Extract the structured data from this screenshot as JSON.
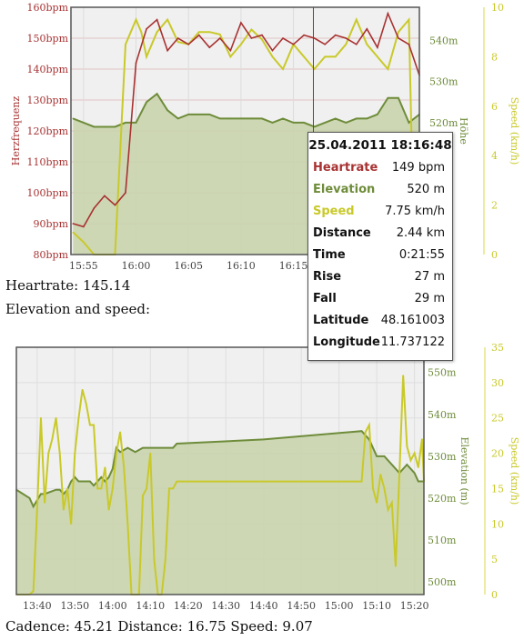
{
  "chart_top": {
    "type": "line",
    "yaxis_left": {
      "label": "Herzfrequenz",
      "unit": "bpm",
      "min": 80,
      "max": 160,
      "ticks": [
        80,
        90,
        100,
        110,
        120,
        130,
        140,
        150,
        160
      ],
      "color": "#a83232"
    },
    "yaxis_elev": {
      "label": "Höhe",
      "unit": "m",
      "min": 488,
      "max": 548,
      "ticks": [
        520,
        530,
        540
      ],
      "color": "#6e8c3a"
    },
    "yaxis_speed": {
      "label": "Speed (km/h)",
      "min": 0,
      "max": 10,
      "ticks": [
        0,
        2,
        4,
        6,
        8,
        10
      ],
      "color": "#c9c92a"
    },
    "xaxis": {
      "ticks": [
        "15:55",
        "16:00",
        "16:05",
        "16:10",
        "16:15"
      ],
      "tick_values": [
        0,
        5,
        10,
        15,
        20
      ],
      "min": -1.2,
      "max": 32
    },
    "cursor_x": 21.9,
    "series": [
      {
        "name": "Heartrate",
        "color": "#a83232",
        "x": [
          -1,
          0,
          1,
          2,
          3,
          4,
          5,
          6,
          7,
          8,
          9,
          10,
          11,
          12,
          13,
          14,
          15,
          16,
          17,
          18,
          19,
          20,
          21,
          22,
          23,
          24,
          25,
          26,
          27,
          28,
          29,
          30,
          31,
          32
        ],
        "values": [
          90,
          89,
          95,
          99,
          96,
          100,
          142,
          153,
          156,
          146,
          150,
          148,
          151,
          147,
          150,
          146,
          155,
          150,
          151,
          146,
          150,
          148,
          151,
          150,
          148,
          151,
          150,
          148,
          153,
          147,
          158,
          150,
          148,
          138
        ]
      },
      {
        "name": "Elevation",
        "color": "#6e8c3a",
        "x": [
          -1,
          0,
          1,
          2,
          3,
          4,
          5,
          6,
          7,
          8,
          9,
          10,
          11,
          12,
          13,
          14,
          15,
          16,
          17,
          18,
          19,
          20,
          21,
          22,
          23,
          24,
          25,
          26,
          27,
          28,
          29,
          30,
          31,
          32
        ],
        "values": [
          521,
          520,
          519,
          519,
          519,
          520,
          520,
          525,
          527,
          523,
          521,
          522,
          522,
          522,
          521,
          521,
          521,
          521,
          521,
          520,
          521,
          520,
          520,
          519,
          520,
          521,
          520,
          521,
          521,
          522,
          526,
          526,
          520,
          522
        ]
      },
      {
        "name": "Speed",
        "color": "#c9c92a",
        "x": [
          -1,
          0,
          1,
          2,
          3,
          4,
          5,
          5.5,
          6,
          7,
          8,
          9,
          10,
          11,
          12,
          13,
          14,
          15,
          16,
          17,
          18,
          19,
          20,
          21,
          22,
          23,
          24,
          25,
          26,
          27,
          28,
          29,
          30,
          31,
          31.5,
          32
        ],
        "values": [
          0.9,
          0.5,
          0,
          0,
          0,
          8.5,
          9.5,
          9,
          8,
          9,
          9.5,
          8.6,
          8.5,
          9,
          9,
          8.9,
          8,
          8.5,
          9.1,
          8.7,
          8,
          7.5,
          8.5,
          8,
          7.5,
          8,
          8,
          8.5,
          9.5,
          8.5,
          8,
          7.5,
          9,
          9.5,
          0,
          0.5
        ]
      }
    ]
  },
  "chart_bottom": {
    "type": "line",
    "yaxis_elev": {
      "label": "Elevation (m)",
      "unit": "m",
      "min": 497,
      "max": 556,
      "ticks": [
        500,
        510,
        520,
        530,
        540,
        550
      ],
      "color": "#6e8c3a"
    },
    "yaxis_speed": {
      "label": "Speed (km/h)",
      "min": 0,
      "max": 35,
      "ticks": [
        0,
        5,
        10,
        15,
        20,
        25,
        30,
        35
      ],
      "color": "#c9c92a"
    },
    "xaxis": {
      "ticks": [
        "13:40",
        "13:50",
        "14:00",
        "14:10",
        "14:20",
        "14:30",
        "14:40",
        "14:50",
        "15:00",
        "15:10",
        "15:20"
      ],
      "tick_values": [
        40,
        50,
        60,
        70,
        80,
        90,
        100,
        110,
        120,
        130,
        140
      ],
      "min": 34.5,
      "max": 142.5
    },
    "series": [
      {
        "name": "Elevation",
        "color": "#6e8c3a",
        "x": [
          34.5,
          38,
          39,
          41,
          42,
          45,
          46,
          47,
          48,
          49,
          50,
          51,
          52,
          53,
          54,
          55,
          56,
          57,
          58,
          59,
          60,
          61,
          62,
          64,
          66,
          68,
          70,
          72,
          74,
          76,
          77,
          100,
          126,
          128,
          130,
          132,
          134,
          136,
          138,
          140,
          141,
          142.5
        ],
        "values": [
          522,
          520,
          518,
          521,
          521,
          522,
          522,
          521,
          522,
          524,
          525,
          524,
          524,
          524,
          524,
          523,
          524,
          525,
          524,
          525,
          527,
          532,
          531,
          532,
          531,
          532,
          532,
          532,
          532,
          532,
          533,
          534,
          536,
          534,
          530,
          530,
          528,
          526,
          528,
          526,
          524,
          524
        ]
      },
      {
        "name": "Speed",
        "color": "#c9c92a",
        "x": [
          34.5,
          38,
          39,
          40,
          41,
          42,
          43,
          44,
          45,
          46,
          47,
          48,
          49,
          50,
          51,
          52,
          53,
          54,
          55,
          56,
          57,
          58,
          59,
          60,
          61,
          62,
          63,
          64,
          65,
          66,
          67,
          68,
          69,
          70,
          71,
          72,
          73,
          74,
          75,
          76,
          77,
          126,
          127,
          128,
          129,
          130,
          131,
          132,
          133,
          134,
          135,
          136,
          137,
          138,
          139,
          140,
          141,
          142,
          142.5
        ],
        "values": [
          0,
          0,
          0.5,
          12,
          25,
          13,
          20,
          22,
          25,
          20,
          12,
          15,
          10,
          20,
          25,
          29,
          27,
          24,
          24,
          15,
          15,
          18,
          12,
          15,
          20,
          23,
          18,
          10,
          0,
          0,
          0,
          14,
          15,
          20,
          5,
          0,
          0,
          5,
          15,
          15,
          16,
          16,
          23,
          24,
          15,
          13,
          17,
          15,
          12,
          13,
          4,
          17,
          31,
          21,
          19,
          20,
          18,
          22,
          16
        ]
      }
    ],
    "cursor_x": 55.5
  },
  "tooltip": {
    "title": "25.04.2011 18:16:48",
    "rows": [
      {
        "label": "Heartrate",
        "value": "149 bpm",
        "color": "#a83232"
      },
      {
        "label": "Elevation",
        "value": "520 m",
        "color": "#6e8c3a"
      },
      {
        "label": "Speed",
        "value": "7.75 km/h",
        "color": "#c9c92a"
      },
      {
        "label": "Distance",
        "value": "2.44 km",
        "color": "#111111"
      },
      {
        "label": "Time",
        "value": "0:21:55",
        "color": "#111111"
      },
      {
        "label": "Rise",
        "value": "27 m",
        "color": "#111111"
      },
      {
        "label": "Fall",
        "value": "29 m",
        "color": "#111111"
      },
      {
        "label": "Latitude",
        "value": "48.161003",
        "color": "#111111"
      },
      {
        "label": "Longitude",
        "value": "11.737122",
        "color": "#111111"
      }
    ]
  },
  "captions": {
    "heartrate": "Heartrate: 145.14",
    "elevation_speed": "Elevation and speed:",
    "summary": "Cadence: 45.21 Distance: 16.75 Speed: 9.07"
  }
}
